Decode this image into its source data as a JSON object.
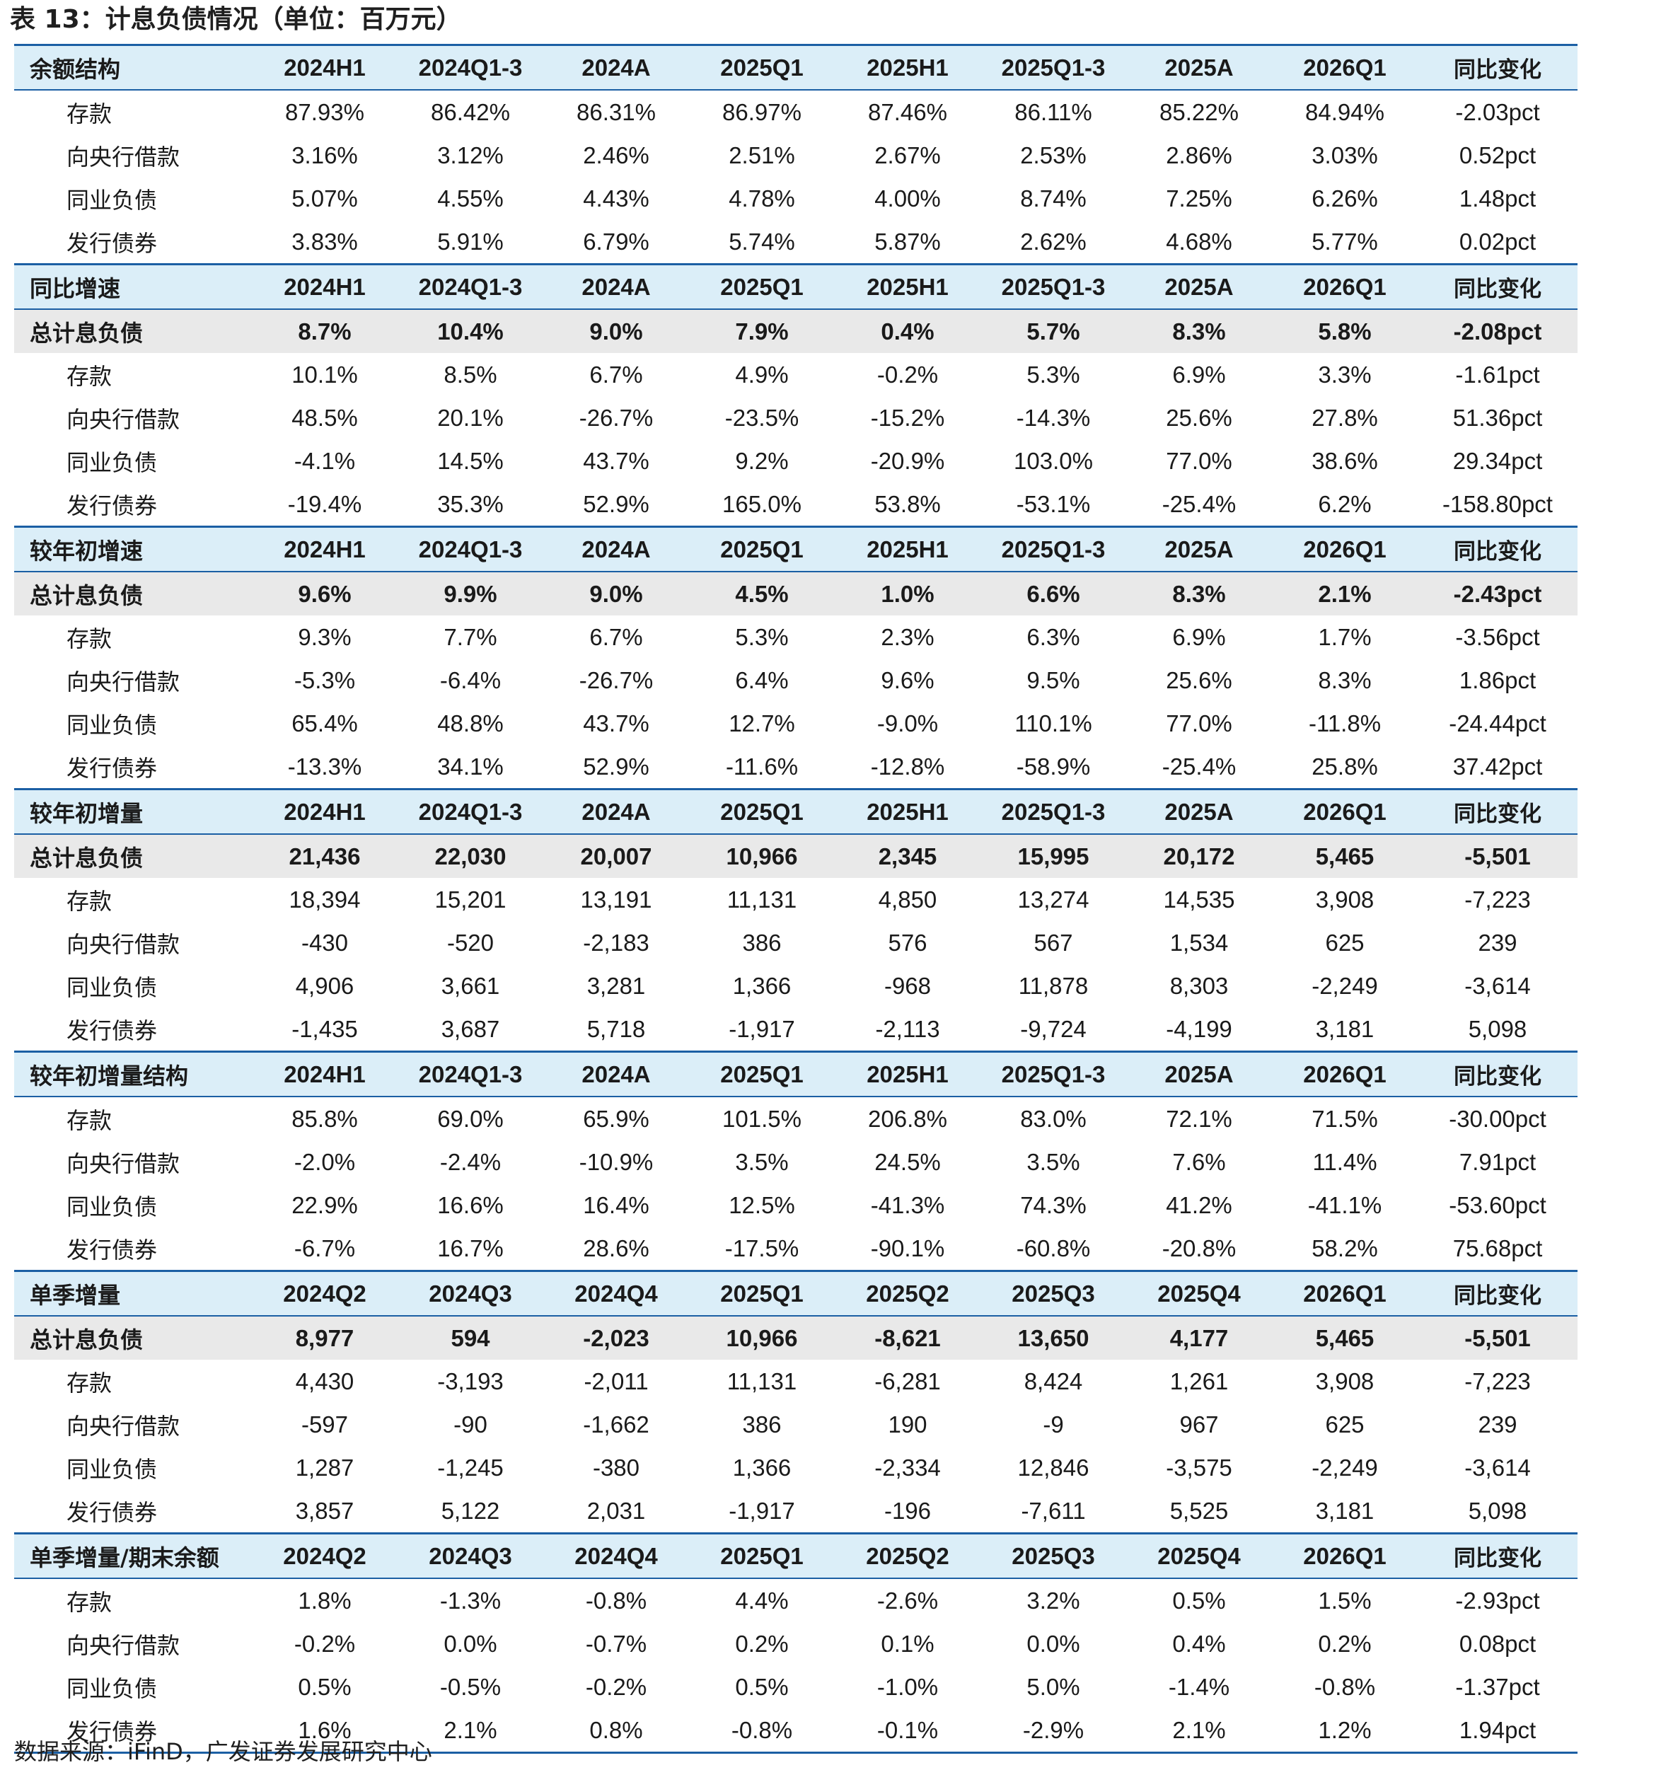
{
  "title": "表 13：计息负债情况（单位：百万元）",
  "source": "数据来源：iFinD，广发证券发展研究中心",
  "sections": [
    {
      "header": [
        "余额结构",
        "2024H1",
        "2024Q1-3",
        "2024A",
        "2025Q1",
        "2025H1",
        "2025Q1-3",
        "2025A",
        "2026Q1",
        "同比变化"
      ],
      "rows": [
        {
          "type": "sub",
          "cells": [
            "存款",
            "87.93%",
            "86.42%",
            "86.31%",
            "86.97%",
            "87.46%",
            "86.11%",
            "85.22%",
            "84.94%",
            "-2.03pct"
          ]
        },
        {
          "type": "sub",
          "cells": [
            "向央行借款",
            "3.16%",
            "3.12%",
            "2.46%",
            "2.51%",
            "2.67%",
            "2.53%",
            "2.86%",
            "3.03%",
            "0.52pct"
          ]
        },
        {
          "type": "sub",
          "cells": [
            "同业负债",
            "5.07%",
            "4.55%",
            "4.43%",
            "4.78%",
            "4.00%",
            "8.74%",
            "7.25%",
            "6.26%",
            "1.48pct"
          ]
        },
        {
          "type": "sub",
          "cells": [
            "发行债券",
            "3.83%",
            "5.91%",
            "6.79%",
            "5.74%",
            "5.87%",
            "2.62%",
            "4.68%",
            "5.77%",
            "0.02pct"
          ]
        }
      ]
    },
    {
      "header": [
        "同比增速",
        "2024H1",
        "2024Q1-3",
        "2024A",
        "2025Q1",
        "2025H1",
        "2025Q1-3",
        "2025A",
        "2026Q1",
        "同比变化"
      ],
      "rows": [
        {
          "type": "total",
          "cells": [
            "总计息负债",
            "8.7%",
            "10.4%",
            "9.0%",
            "7.9%",
            "0.4%",
            "5.7%",
            "8.3%",
            "5.8%",
            "-2.08pct"
          ]
        },
        {
          "type": "sub",
          "cells": [
            "存款",
            "10.1%",
            "8.5%",
            "6.7%",
            "4.9%",
            "-0.2%",
            "5.3%",
            "6.9%",
            "3.3%",
            "-1.61pct"
          ]
        },
        {
          "type": "sub",
          "cells": [
            "向央行借款",
            "48.5%",
            "20.1%",
            "-26.7%",
            "-23.5%",
            "-15.2%",
            "-14.3%",
            "25.6%",
            "27.8%",
            "51.36pct"
          ]
        },
        {
          "type": "sub",
          "cells": [
            "同业负债",
            "-4.1%",
            "14.5%",
            "43.7%",
            "9.2%",
            "-20.9%",
            "103.0%",
            "77.0%",
            "38.6%",
            "29.34pct"
          ]
        },
        {
          "type": "sub",
          "cells": [
            "发行债券",
            "-19.4%",
            "35.3%",
            "52.9%",
            "165.0%",
            "53.8%",
            "-53.1%",
            "-25.4%",
            "6.2%",
            "-158.80pct"
          ]
        }
      ]
    },
    {
      "header": [
        "较年初增速",
        "2024H1",
        "2024Q1-3",
        "2024A",
        "2025Q1",
        "2025H1",
        "2025Q1-3",
        "2025A",
        "2026Q1",
        "同比变化"
      ],
      "rows": [
        {
          "type": "total",
          "cells": [
            "总计息负债",
            "9.6%",
            "9.9%",
            "9.0%",
            "4.5%",
            "1.0%",
            "6.6%",
            "8.3%",
            "2.1%",
            "-2.43pct"
          ]
        },
        {
          "type": "sub",
          "cells": [
            "存款",
            "9.3%",
            "7.7%",
            "6.7%",
            "5.3%",
            "2.3%",
            "6.3%",
            "6.9%",
            "1.7%",
            "-3.56pct"
          ]
        },
        {
          "type": "sub",
          "cells": [
            "向央行借款",
            "-5.3%",
            "-6.4%",
            "-26.7%",
            "6.4%",
            "9.6%",
            "9.5%",
            "25.6%",
            "8.3%",
            "1.86pct"
          ]
        },
        {
          "type": "sub",
          "cells": [
            "同业负债",
            "65.4%",
            "48.8%",
            "43.7%",
            "12.7%",
            "-9.0%",
            "110.1%",
            "77.0%",
            "-11.8%",
            "-24.44pct"
          ]
        },
        {
          "type": "sub",
          "cells": [
            "发行债券",
            "-13.3%",
            "34.1%",
            "52.9%",
            "-11.6%",
            "-12.8%",
            "-58.9%",
            "-25.4%",
            "25.8%",
            "37.42pct"
          ]
        }
      ]
    },
    {
      "header": [
        "较年初增量",
        "2024H1",
        "2024Q1-3",
        "2024A",
        "2025Q1",
        "2025H1",
        "2025Q1-3",
        "2025A",
        "2026Q1",
        "同比变化"
      ],
      "rows": [
        {
          "type": "total",
          "cells": [
            "总计息负债",
            "21,436",
            "22,030",
            "20,007",
            "10,966",
            "2,345",
            "15,995",
            "20,172",
            "5,465",
            "-5,501"
          ]
        },
        {
          "type": "sub",
          "cells": [
            "存款",
            "18,394",
            "15,201",
            "13,191",
            "11,131",
            "4,850",
            "13,274",
            "14,535",
            "3,908",
            "-7,223"
          ]
        },
        {
          "type": "sub",
          "cells": [
            "向央行借款",
            "-430",
            "-520",
            "-2,183",
            "386",
            "576",
            "567",
            "1,534",
            "625",
            "239"
          ]
        },
        {
          "type": "sub",
          "cells": [
            "同业负债",
            "4,906",
            "3,661",
            "3,281",
            "1,366",
            "-968",
            "11,878",
            "8,303",
            "-2,249",
            "-3,614"
          ]
        },
        {
          "type": "sub",
          "cells": [
            "发行债券",
            "-1,435",
            "3,687",
            "5,718",
            "-1,917",
            "-2,113",
            "-9,724",
            "-4,199",
            "3,181",
            "5,098"
          ]
        }
      ]
    },
    {
      "header": [
        "较年初增量结构",
        "2024H1",
        "2024Q1-3",
        "2024A",
        "2025Q1",
        "2025H1",
        "2025Q1-3",
        "2025A",
        "2026Q1",
        "同比变化"
      ],
      "rows": [
        {
          "type": "sub",
          "cells": [
            "存款",
            "85.8%",
            "69.0%",
            "65.9%",
            "101.5%",
            "206.8%",
            "83.0%",
            "72.1%",
            "71.5%",
            "-30.00pct"
          ]
        },
        {
          "type": "sub",
          "cells": [
            "向央行借款",
            "-2.0%",
            "-2.4%",
            "-10.9%",
            "3.5%",
            "24.5%",
            "3.5%",
            "7.6%",
            "11.4%",
            "7.91pct"
          ]
        },
        {
          "type": "sub",
          "cells": [
            "同业负债",
            "22.9%",
            "16.6%",
            "16.4%",
            "12.5%",
            "-41.3%",
            "74.3%",
            "41.2%",
            "-41.1%",
            "-53.60pct"
          ]
        },
        {
          "type": "sub",
          "cells": [
            "发行债券",
            "-6.7%",
            "16.7%",
            "28.6%",
            "-17.5%",
            "-90.1%",
            "-60.8%",
            "-20.8%",
            "58.2%",
            "75.68pct"
          ]
        }
      ]
    },
    {
      "header": [
        "单季增量",
        "2024Q2",
        "2024Q3",
        "2024Q4",
        "2025Q1",
        "2025Q2",
        "2025Q3",
        "2025Q4",
        "2026Q1",
        "同比变化"
      ],
      "rows": [
        {
          "type": "total",
          "cells": [
            "总计息负债",
            "8,977",
            "594",
            "-2,023",
            "10,966",
            "-8,621",
            "13,650",
            "4,177",
            "5,465",
            "-5,501"
          ]
        },
        {
          "type": "sub",
          "cells": [
            "存款",
            "4,430",
            "-3,193",
            "-2,011",
            "11,131",
            "-6,281",
            "8,424",
            "1,261",
            "3,908",
            "-7,223"
          ]
        },
        {
          "type": "sub",
          "cells": [
            "向央行借款",
            "-597",
            "-90",
            "-1,662",
            "386",
            "190",
            "-9",
            "967",
            "625",
            "239"
          ]
        },
        {
          "type": "sub",
          "cells": [
            "同业负债",
            "1,287",
            "-1,245",
            "-380",
            "1,366",
            "-2,334",
            "12,846",
            "-3,575",
            "-2,249",
            "-3,614"
          ]
        },
        {
          "type": "sub",
          "cells": [
            "发行债券",
            "3,857",
            "5,122",
            "2,031",
            "-1,917",
            "-196",
            "-7,611",
            "5,525",
            "3,181",
            "5,098"
          ]
        }
      ]
    },
    {
      "header": [
        "单季增量/期末余额",
        "2024Q2",
        "2024Q3",
        "2024Q4",
        "2025Q1",
        "2025Q2",
        "2025Q3",
        "2025Q4",
        "2026Q1",
        "同比变化"
      ],
      "rows": [
        {
          "type": "sub",
          "cells": [
            "存款",
            "1.8%",
            "-1.3%",
            "-0.8%",
            "4.4%",
            "-2.6%",
            "3.2%",
            "0.5%",
            "1.5%",
            "-2.93pct"
          ]
        },
        {
          "type": "sub",
          "cells": [
            "向央行借款",
            "-0.2%",
            "0.0%",
            "-0.7%",
            "0.2%",
            "0.1%",
            "0.0%",
            "0.4%",
            "0.2%",
            "0.08pct"
          ]
        },
        {
          "type": "sub",
          "cells": [
            "同业负债",
            "0.5%",
            "-0.5%",
            "-0.2%",
            "0.5%",
            "-1.0%",
            "5.0%",
            "-1.4%",
            "-0.8%",
            "-1.37pct"
          ]
        },
        {
          "type": "sub",
          "cells": [
            "发行债券",
            "1.6%",
            "2.1%",
            "0.8%",
            "-0.8%",
            "-0.1%",
            "-2.9%",
            "2.1%",
            "1.2%",
            "1.94pct"
          ]
        }
      ]
    }
  ]
}
